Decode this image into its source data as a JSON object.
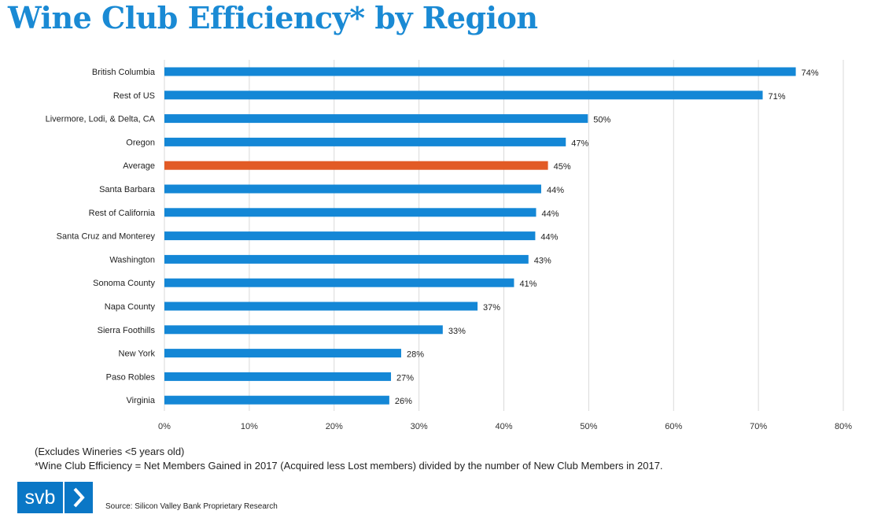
{
  "title": "Wine Club Efficiency* by Region",
  "notes": {
    "line1": "(Excludes Wineries <5 years old)",
    "line2": "*Wine Club Efficiency = Net Members Gained in 2017 (Acquired less Lost members) divided by the number of New Club Members in 2017."
  },
  "logo": {
    "text": "svb",
    "icon": "chevron-right-icon"
  },
  "source": "Source: Silicon Valley Bank Proprietary Research",
  "colors": {
    "bar": "#1487d6",
    "highlight": "#e25b26",
    "grid": "#d9d9d9",
    "title": "#1a8ad4"
  },
  "chart_data": {
    "type": "bar",
    "orientation": "horizontal",
    "title": "Wine Club Efficiency* by Region",
    "categories": [
      "British Columbia",
      "Rest of US",
      "Livermore, Lodi, & Delta, CA",
      "Oregon",
      "Average",
      "Santa Barbara",
      "Rest of California",
      "Santa Cruz and Monterey",
      "Washington",
      "Sonoma County",
      "Napa County",
      "Sierra Foothills",
      "New York",
      "Paso Robles",
      "Virginia"
    ],
    "values": [
      74.4,
      70.5,
      49.9,
      47.3,
      45.2,
      44.4,
      43.8,
      43.7,
      42.9,
      41.2,
      36.9,
      32.8,
      27.9,
      26.7,
      26.5
    ],
    "value_labels": [
      "74%",
      "71%",
      "50%",
      "47%",
      "45%",
      "44%",
      "44%",
      "44%",
      "43%",
      "41%",
      "37%",
      "33%",
      "28%",
      "27%",
      "26%"
    ],
    "highlight": "Average",
    "xlim": [
      0,
      80
    ],
    "xticks": [
      0,
      10,
      20,
      30,
      40,
      50,
      60,
      70,
      80
    ],
    "xtick_labels": [
      "0%",
      "10%",
      "20%",
      "30%",
      "40%",
      "50%",
      "60%",
      "70%",
      "80%"
    ],
    "grid": true,
    "xlabel": "",
    "ylabel": ""
  }
}
